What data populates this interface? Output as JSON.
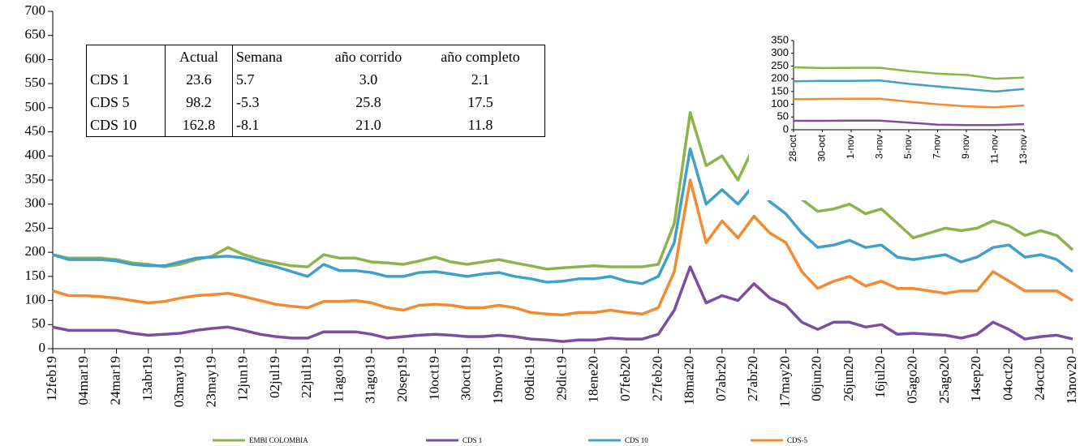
{
  "chart_data": [
    {
      "type": "line",
      "categories": [
        "12feb19",
        null,
        "04mar19",
        null,
        "24mar19",
        null,
        "13abr19",
        null,
        "03may19",
        null,
        "23may19",
        null,
        "12jun19",
        null,
        "02jul19",
        null,
        "22jul19",
        null,
        "11ago19",
        null,
        "31ago19",
        null,
        "20sep19",
        null,
        "10oct19",
        null,
        "30oct19",
        null,
        "19nov19",
        null,
        "09dic19",
        null,
        "29dic19",
        null,
        "18ene20",
        null,
        "07feb20",
        null,
        "27feb20",
        null,
        "18mar20",
        null,
        "07abr20",
        null,
        "27abr20",
        null,
        "17may20",
        null,
        "06jun20",
        null,
        "26jun20",
        null,
        "16jul20",
        null,
        "05ago20",
        null,
        "25ago20",
        null,
        "14sep20",
        null,
        "04oct20",
        null,
        "24oct20",
        null,
        "13nov20"
      ],
      "series": [
        {
          "name": "EMBI COLOMBIA",
          "color": "#8db34a",
          "values": [
            195,
            188,
            188,
            188,
            185,
            178,
            175,
            170,
            175,
            185,
            192,
            210,
            195,
            185,
            178,
            172,
            170,
            195,
            188,
            188,
            180,
            178,
            175,
            182,
            190,
            180,
            175,
            180,
            185,
            178,
            172,
            165,
            168,
            170,
            172,
            170,
            170,
            170,
            175,
            260,
            490,
            380,
            400,
            350,
            420,
            370,
            360,
            310,
            285,
            290,
            300,
            280,
            290,
            260,
            230,
            240,
            250,
            245,
            250,
            265,
            255,
            235,
            245,
            235,
            205
          ]
        },
        {
          "name": "CDS 1",
          "color": "#7b4fa0",
          "values": [
            45,
            38,
            38,
            38,
            38,
            32,
            28,
            30,
            32,
            38,
            42,
            45,
            38,
            30,
            25,
            22,
            22,
            35,
            35,
            35,
            30,
            22,
            25,
            28,
            30,
            28,
            25,
            25,
            28,
            25,
            20,
            18,
            15,
            18,
            18,
            22,
            20,
            20,
            30,
            80,
            170,
            95,
            110,
            100,
            135,
            105,
            90,
            55,
            40,
            55,
            55,
            45,
            50,
            30,
            32,
            30,
            28,
            22,
            30,
            55,
            40,
            20,
            25,
            28,
            20
          ]
        },
        {
          "name": "CDS 10",
          "color": "#40a0c8",
          "values": [
            195,
            185,
            185,
            185,
            182,
            175,
            172,
            172,
            180,
            188,
            190,
            192,
            188,
            178,
            170,
            160,
            150,
            175,
            162,
            162,
            158,
            150,
            150,
            158,
            160,
            155,
            150,
            155,
            158,
            150,
            145,
            138,
            140,
            145,
            145,
            150,
            140,
            135,
            150,
            220,
            415,
            300,
            330,
            300,
            340,
            305,
            280,
            240,
            210,
            215,
            225,
            210,
            215,
            190,
            185,
            190,
            195,
            180,
            190,
            210,
            215,
            190,
            195,
            185,
            160
          ]
        },
        {
          "name": "CDS-5",
          "color": "#f28a30",
          "values": [
            120,
            110,
            110,
            108,
            105,
            100,
            95,
            98,
            105,
            110,
            112,
            115,
            108,
            100,
            92,
            88,
            85,
            98,
            98,
            100,
            95,
            85,
            80,
            90,
            92,
            90,
            85,
            85,
            90,
            85,
            75,
            72,
            70,
            75,
            75,
            80,
            75,
            72,
            85,
            160,
            350,
            220,
            265,
            230,
            275,
            240,
            220,
            160,
            125,
            140,
            150,
            130,
            140,
            125,
            125,
            120,
            115,
            120,
            120,
            160,
            140,
            120,
            120,
            120,
            100
          ]
        }
      ],
      "ylim": [
        0,
        700
      ],
      "yticks": [
        0,
        50,
        100,
        150,
        200,
        250,
        300,
        350,
        400,
        450,
        500,
        550,
        600,
        650,
        700
      ],
      "legend": "bottom"
    },
    {
      "type": "line",
      "categories": [
        "28-oct",
        "30-oct",
        "1-nov",
        "3-nov",
        "5-nov",
        "7-nov",
        "9-nov",
        "11-nov",
        "13-nov"
      ],
      "series": [
        {
          "name": "EMBI COLOMBIA",
          "color": "#8db34a",
          "values": [
            245,
            242,
            243,
            243,
            230,
            220,
            215,
            200,
            205
          ]
        },
        {
          "name": "CDS 1",
          "color": "#7b4fa0",
          "values": [
            35,
            35,
            36,
            36,
            28,
            20,
            18,
            18,
            22
          ]
        },
        {
          "name": "CDS 10",
          "color": "#40a0c8",
          "values": [
            190,
            192,
            192,
            193,
            180,
            170,
            160,
            150,
            160
          ]
        },
        {
          "name": "CDS-5",
          "color": "#f28a30",
          "values": [
            120,
            121,
            122,
            122,
            110,
            100,
            92,
            88,
            95
          ]
        }
      ],
      "ylim": [
        0,
        350
      ],
      "yticks": [
        0,
        50,
        100,
        150,
        200,
        250,
        300,
        350
      ]
    }
  ],
  "table": {
    "columns": [
      "Actual",
      "Semana",
      "año corrido",
      "año completo"
    ],
    "rows": [
      [
        "CDS 1",
        "23.6",
        "5.7",
        "3.0",
        "2.1"
      ],
      [
        "CDS 5",
        "98.2",
        "-5.3",
        "25.8",
        "17.5"
      ],
      [
        "CDS 10",
        "162.8",
        "-8.1",
        "21.0",
        "11.8"
      ]
    ]
  }
}
